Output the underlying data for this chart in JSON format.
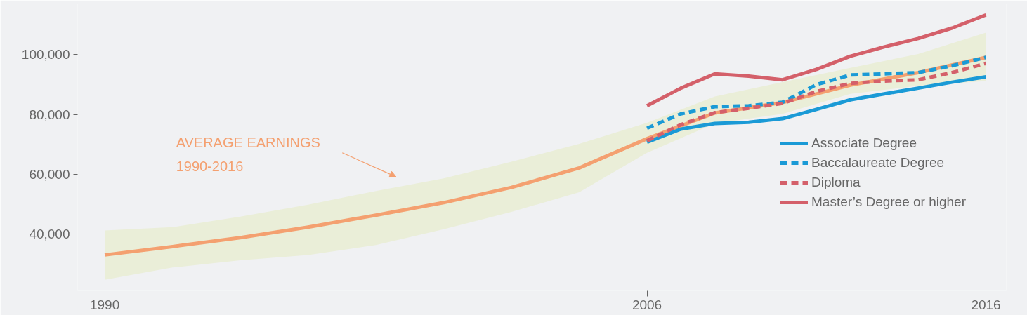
{
  "chart_data": {
    "type": "line",
    "xlim": [
      1989.2,
      2016.6
    ],
    "ylim": [
      21000,
      117000
    ],
    "xticks": [
      1990,
      2006,
      2016
    ],
    "yticks": [
      {
        "value": 40000,
        "label": "40,000"
      },
      {
        "value": 60000,
        "label": "60,000"
      },
      {
        "value": 80000,
        "label": "80,000"
      },
      {
        "value": 100000,
        "label": "100,000"
      }
    ],
    "grid": false,
    "legend": "right",
    "annotations": [
      "AVERAGE EARNINGS\n1990-2016"
    ],
    "series": [
      {
        "color": "#f4a070",
        "line_style": "solid",
        "x": [
          1990,
          1992,
          1994,
          1996,
          1998,
          2000,
          2002,
          2004,
          2006,
          2008,
          2010,
          2012,
          2014,
          2016
        ],
        "values": [
          33000,
          35800,
          38800,
          42300,
          46300,
          50500,
          55600,
          62100,
          71900,
          80500,
          84000,
          89800,
          94000,
          99100
        ],
        "upper": [
          41200,
          42300,
          45800,
          49800,
          54400,
          58600,
          64200,
          70200,
          77200,
          86000,
          90800,
          95600,
          100200,
          107400
        ],
        "lower": [
          24700,
          28800,
          31200,
          33000,
          36300,
          41600,
          47400,
          54000,
          67200,
          77000,
          80200,
          86900,
          89600,
          91200
        ]
      },
      {
        "name": "Associate Degree",
        "color": "#1a9ad6",
        "line_style": "solid",
        "x": [
          2006,
          2007,
          2008,
          2009,
          2010,
          2011,
          2012,
          2013,
          2014,
          2015,
          2016
        ],
        "values": [
          70700,
          75100,
          77000,
          77400,
          78600,
          81700,
          84900,
          86900,
          88800,
          90800,
          92600
        ]
      },
      {
        "name": "Baccalaureate Degree",
        "color": "#1a9ad6",
        "line_style": "dashed",
        "x": [
          2006,
          2007,
          2008,
          2009,
          2010,
          2011,
          2012,
          2013,
          2014,
          2015,
          2016
        ],
        "values": [
          75400,
          80200,
          82600,
          82900,
          84100,
          90000,
          93200,
          93600,
          94000,
          96300,
          99100
        ]
      },
      {
        "name": "Diploma",
        "color": "#d4606a",
        "line_style": "dashed",
        "x": [
          2006,
          2007,
          2008,
          2009,
          2010,
          2011,
          2012,
          2013,
          2014,
          2015,
          2016
        ],
        "values": [
          71200,
          76600,
          80600,
          82100,
          83700,
          87700,
          90400,
          91200,
          91600,
          94000,
          97100
        ]
      },
      {
        "name": "Master’s Degree or higher",
        "color": "#d4606a",
        "line_style": "solid",
        "x": [
          2006,
          2007,
          2008,
          2009,
          2010,
          2011,
          2012,
          2013,
          2014,
          2015,
          2016
        ],
        "values": [
          82900,
          88800,
          93600,
          92800,
          91600,
          95100,
          99500,
          102600,
          105400,
          108900,
          113300
        ]
      }
    ]
  }
}
